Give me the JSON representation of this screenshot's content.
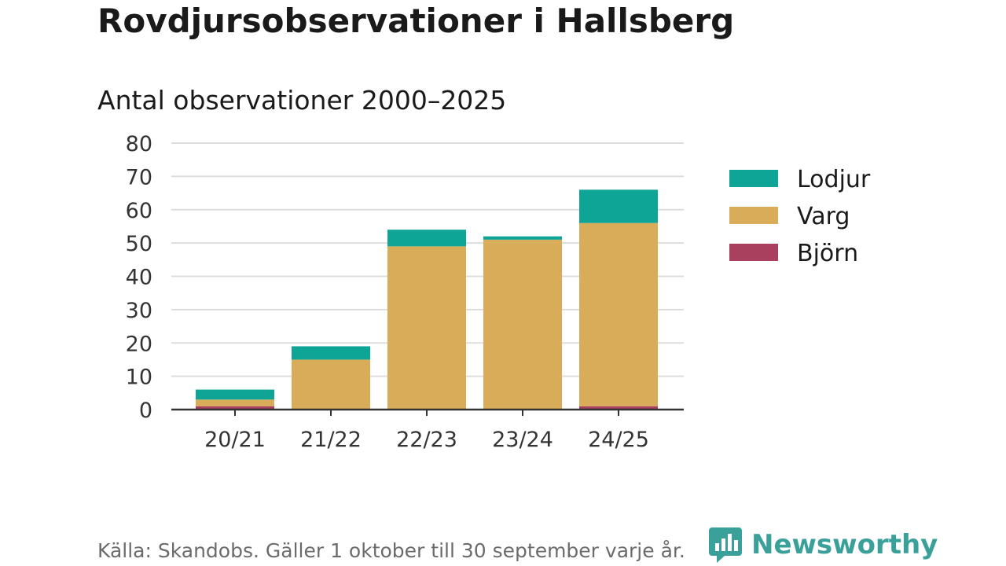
{
  "header": {
    "title": "Rovdjursobservationer i Hallsberg",
    "subtitle": "Antal observationer 2000–2025"
  },
  "footer": {
    "source": "Källa: Skandobs. Gäller 1 oktober till 30 september varje år.",
    "brand": "Newsworthy"
  },
  "colors": {
    "lodjur": "#0ea597",
    "varg": "#d9ac59",
    "bjorn": "#a8405e",
    "brand": "#3aa09a",
    "grid": "#dddddd",
    "axis": "#333333"
  },
  "chart_data": {
    "type": "bar",
    "stacked": true,
    "categories": [
      "20/21",
      "21/22",
      "22/23",
      "23/24",
      "24/25"
    ],
    "series": [
      {
        "name": "Björn",
        "color_key": "bjorn",
        "values": [
          1,
          0,
          0,
          0,
          1
        ]
      },
      {
        "name": "Varg",
        "color_key": "varg",
        "values": [
          2,
          15,
          49,
          51,
          55
        ]
      },
      {
        "name": "Lodjur",
        "color_key": "lodjur",
        "values": [
          3,
          4,
          5,
          1,
          10
        ]
      }
    ],
    "legend": [
      "Lodjur",
      "Varg",
      "Björn"
    ],
    "legend_position": "right",
    "ylim": [
      0,
      80
    ],
    "yticks": [
      0,
      10,
      20,
      30,
      40,
      50,
      60,
      70,
      80
    ],
    "grid": true,
    "title": "Antal observationer 2000–2025",
    "xlabel": "",
    "ylabel": ""
  }
}
